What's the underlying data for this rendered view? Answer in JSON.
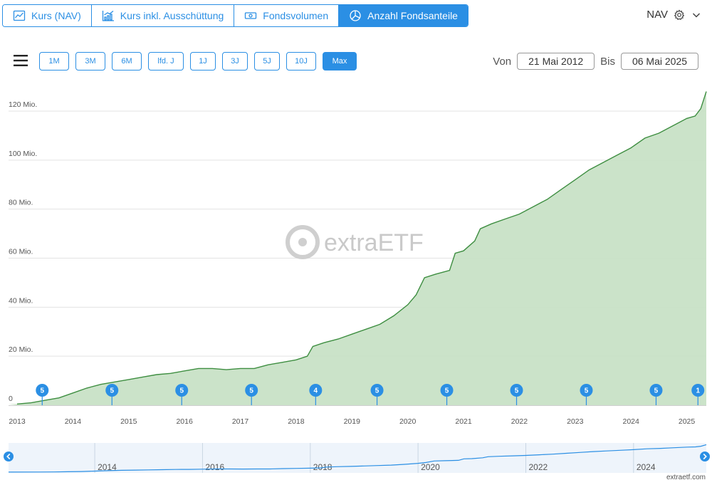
{
  "tabs": [
    {
      "label": "Kurs (NAV)",
      "icon": "line-chart-icon",
      "active": false
    },
    {
      "label": "Kurs inkl. Ausschüttung",
      "icon": "bar-line-chart-icon",
      "active": false
    },
    {
      "label": "Fondsvolumen",
      "icon": "money-icon",
      "active": false
    },
    {
      "label": "Anzahl Fondsanteile",
      "icon": "pie-chart-icon",
      "active": true
    }
  ],
  "nav_selector": {
    "label": "NAV"
  },
  "ranges": [
    {
      "label": "1M",
      "active": false
    },
    {
      "label": "3M",
      "active": false
    },
    {
      "label": "6M",
      "active": false
    },
    {
      "label": "lfd. J",
      "active": false
    },
    {
      "label": "1J",
      "active": false
    },
    {
      "label": "3J",
      "active": false
    },
    {
      "label": "5J",
      "active": false
    },
    {
      "label": "10J",
      "active": false
    },
    {
      "label": "Max",
      "active": true
    }
  ],
  "date_range": {
    "from_label": "Von",
    "from": "21 Mai 2012",
    "to_label": "Bis",
    "to": "06 Mai 2025"
  },
  "watermark": "extraETF",
  "credit": "extraetf.com",
  "chart_data": {
    "type": "area",
    "title": "",
    "xlabel": "",
    "ylabel": "",
    "ylim": [
      0,
      123
    ],
    "y_ticks": [
      0,
      20,
      40,
      60,
      80,
      100,
      120
    ],
    "y_tick_labels": [
      "0",
      "20 Mio.",
      "40 Mio.",
      "60 Mio.",
      "80 Mio.",
      "100 Mio.",
      "120 Mio."
    ],
    "x_tick_labels": [
      "2013",
      "2014",
      "2015",
      "2016",
      "2017",
      "2018",
      "2019",
      "2020",
      "2021",
      "2022",
      "2023",
      "2024",
      "2025"
    ],
    "x_range": [
      2013.0,
      2025.35
    ],
    "grid": true,
    "colors": {
      "fill": "#c8e2c6",
      "line": "#3e8e41",
      "marker": "#2b8fe4"
    },
    "series": [
      {
        "x": [
          2013.0,
          2013.25,
          2013.5,
          2013.75,
          2014.0,
          2014.25,
          2014.5,
          2014.75,
          2015.0,
          2015.25,
          2015.5,
          2015.75,
          2016.0,
          2016.25,
          2016.5,
          2016.75,
          2017.0,
          2017.25,
          2017.5,
          2017.75,
          2018.0,
          2018.2,
          2018.3,
          2018.5,
          2018.75,
          2019.0,
          2019.25,
          2019.5,
          2019.75,
          2020.0,
          2020.15,
          2020.3,
          2020.5,
          2020.75,
          2020.85,
          2021.0,
          2021.2,
          2021.3,
          2021.5,
          2021.75,
          2022.0,
          2022.25,
          2022.5,
          2022.75,
          2023.0,
          2023.25,
          2023.5,
          2023.75,
          2024.0,
          2024.25,
          2024.5,
          2024.75,
          2025.0,
          2025.15,
          2025.25,
          2025.35
        ],
        "y": [
          0.5,
          1,
          2,
          3,
          5,
          7,
          8.5,
          9.5,
          10.5,
          11.5,
          12.5,
          13,
          14,
          15,
          15,
          14.5,
          15,
          15,
          16.5,
          17.5,
          18.5,
          20,
          24,
          25.5,
          27,
          29,
          31,
          33,
          36.5,
          41,
          45,
          52,
          53.5,
          55,
          62,
          63,
          67,
          72,
          74,
          76,
          78,
          81,
          84,
          88,
          92,
          96,
          99,
          102,
          105,
          109,
          111,
          114,
          117,
          118,
          121,
          128
        ]
      }
    ],
    "markers": [
      {
        "x": 2013.45,
        "label": "5"
      },
      {
        "x": 2014.7,
        "label": "5"
      },
      {
        "x": 2015.95,
        "label": "5"
      },
      {
        "x": 2017.2,
        "label": "5"
      },
      {
        "x": 2018.35,
        "label": "4"
      },
      {
        "x": 2019.45,
        "label": "5"
      },
      {
        "x": 2020.7,
        "label": "5"
      },
      {
        "x": 2021.95,
        "label": "5"
      },
      {
        "x": 2023.2,
        "label": "5"
      },
      {
        "x": 2024.45,
        "label": "5"
      },
      {
        "x": 2025.2,
        "label": "1"
      }
    ],
    "navigator": {
      "x_tick_labels": [
        "2014",
        "2016",
        "2018",
        "2020",
        "2022",
        "2024"
      ],
      "x_ticks": [
        2014,
        2016,
        2018,
        2020,
        2022,
        2024
      ],
      "x_range": [
        2012.4,
        2025.35
      ]
    }
  }
}
